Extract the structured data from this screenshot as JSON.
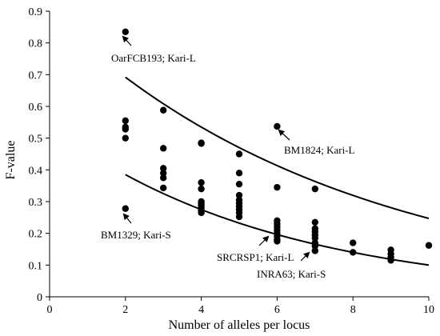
{
  "chart_data": {
    "type": "scatter",
    "title": "",
    "xlabel": "Number of alleles per locus",
    "ylabel": "F-value",
    "xlim": [
      0,
      10
    ],
    "ylim": [
      0,
      0.9
    ],
    "xticks": [
      "0",
      "2",
      "4",
      "6",
      "8",
      "10"
    ],
    "yticks": [
      "0",
      "0.1",
      "0.2",
      "0.3",
      "0.4",
      "0.5",
      "0.6",
      "0.7",
      "0.8",
      "0.9"
    ],
    "grid": false,
    "legend": "none",
    "point_color": "#000000",
    "series": [
      {
        "points": [
          [
            2,
            0.835
          ],
          [
            2,
            0.555
          ],
          [
            2,
            0.535
          ],
          [
            2,
            0.528
          ],
          [
            2,
            0.5
          ],
          [
            2,
            0.278
          ],
          [
            3,
            0.588
          ],
          [
            3,
            0.468
          ],
          [
            3,
            0.405
          ],
          [
            3,
            0.39
          ],
          [
            3,
            0.375
          ],
          [
            3,
            0.343
          ],
          [
            4,
            0.485
          ],
          [
            4,
            0.483
          ],
          [
            4,
            0.36
          ],
          [
            4,
            0.34
          ],
          [
            4,
            0.3
          ],
          [
            4,
            0.295
          ],
          [
            4,
            0.288
          ],
          [
            4,
            0.28
          ],
          [
            4,
            0.272
          ],
          [
            4,
            0.265
          ],
          [
            5,
            0.45
          ],
          [
            5,
            0.39
          ],
          [
            5,
            0.355
          ],
          [
            5,
            0.32
          ],
          [
            5,
            0.305
          ],
          [
            5,
            0.295
          ],
          [
            5,
            0.285
          ],
          [
            5,
            0.275
          ],
          [
            5,
            0.265
          ],
          [
            5,
            0.252
          ],
          [
            6,
            0.537
          ],
          [
            6,
            0.345
          ],
          [
            6,
            0.24
          ],
          [
            6,
            0.23
          ],
          [
            6,
            0.22
          ],
          [
            6,
            0.21
          ],
          [
            6,
            0.2
          ],
          [
            6,
            0.19
          ],
          [
            6,
            0.18
          ],
          [
            6,
            0.175
          ],
          [
            7,
            0.34
          ],
          [
            7,
            0.235
          ],
          [
            7,
            0.215
          ],
          [
            7,
            0.205
          ],
          [
            7,
            0.195
          ],
          [
            7,
            0.185
          ],
          [
            7,
            0.17
          ],
          [
            7,
            0.16
          ],
          [
            7,
            0.145
          ],
          [
            8,
            0.17
          ],
          [
            8,
            0.14
          ],
          [
            9,
            0.148
          ],
          [
            9,
            0.135
          ],
          [
            9,
            0.125
          ],
          [
            9,
            0.115
          ],
          [
            10,
            0.162
          ]
        ]
      }
    ],
    "curves": [
      {
        "formula": "exponential",
        "points": [
          [
            2,
            0.692
          ],
          [
            4,
            0.541
          ],
          [
            6,
            0.423
          ],
          [
            8,
            0.326
          ],
          [
            10,
            0.247
          ]
        ]
      },
      {
        "formula": "exponential",
        "points": [
          [
            2,
            0.385
          ],
          [
            4,
            0.288
          ],
          [
            6,
            0.21
          ],
          [
            8,
            0.146
          ],
          [
            10,
            0.1
          ]
        ]
      }
    ],
    "annotations": [
      {
        "text": "OarFCB193; Kari-L",
        "point": [
          2,
          0.835
        ]
      },
      {
        "text": "BM1824; Kari-L",
        "point": [
          6,
          0.537
        ]
      },
      {
        "text": "BM1329; Kari-S",
        "point": [
          2,
          0.278
        ]
      },
      {
        "text": "SRCRSP1; Kari-L",
        "point": [
          6,
          0.2
        ]
      },
      {
        "text": "INRA63; Kari-S",
        "point": [
          7,
          0.16
        ]
      }
    ]
  }
}
